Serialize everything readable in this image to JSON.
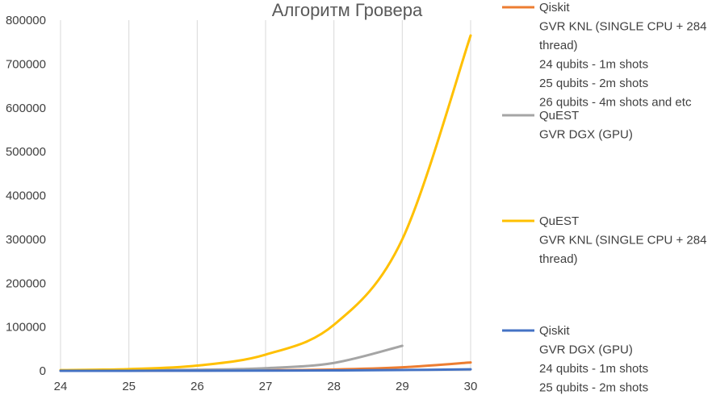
{
  "chart_data": {
    "type": "line",
    "title": "Алгоритм Гровера",
    "xlabel": "",
    "ylabel": "",
    "xlim": [
      24,
      30
    ],
    "ylim": [
      0,
      800000
    ],
    "x_ticks": [
      "24",
      "25",
      "26",
      "27",
      "28",
      "29",
      "30"
    ],
    "y_ticks": [
      "0",
      "100000",
      "200000",
      "300000",
      "400000",
      "500000",
      "600000",
      "700000",
      "800000"
    ],
    "grid": "vertical",
    "legend_position": "right",
    "series": [
      {
        "name": "Qiskit",
        "legend_lines": [
          "Qiskit",
          "GVR KNL (SINGLE CPU + 284",
          "thread)",
          "24 qubits - 1m shots",
          "25 qubits - 2m shots",
          "26 qubits - 4m shots and etc"
        ],
        "color": "#ed7d31",
        "x": [
          24,
          25,
          26,
          27,
          28,
          29,
          30
        ],
        "y": [
          150,
          300,
          700,
          1400,
          3000,
          8000,
          19000
        ]
      },
      {
        "name": "QuEST",
        "legend_lines": [
          "QuEST",
          "GVR DGX (GPU)"
        ],
        "color": "#a5a5a5",
        "x": [
          24,
          25,
          26,
          27,
          28,
          29
        ],
        "y": [
          300,
          1000,
          2500,
          6000,
          18000,
          57000
        ]
      },
      {
        "name": "QuEST",
        "legend_lines": [
          "QuEST",
          "GVR KNL (SINGLE CPU + 284",
          "thread)"
        ],
        "color": "#ffc000",
        "x": [
          24,
          25,
          26,
          27,
          28,
          29,
          30
        ],
        "y": [
          1500,
          4000,
          12000,
          37000,
          105000,
          300000,
          765000
        ]
      },
      {
        "name": "Qiskit",
        "legend_lines": [
          "Qiskit",
          "GVR DGX (GPU)",
          "24 qubits - 1m shots",
          "25 qubits - 2m shots"
        ],
        "color": "#4472c4",
        "x": [
          24,
          25,
          26,
          27,
          28,
          29,
          30
        ],
        "y": [
          50,
          100,
          200,
          400,
          900,
          1800,
          3500
        ]
      }
    ]
  }
}
